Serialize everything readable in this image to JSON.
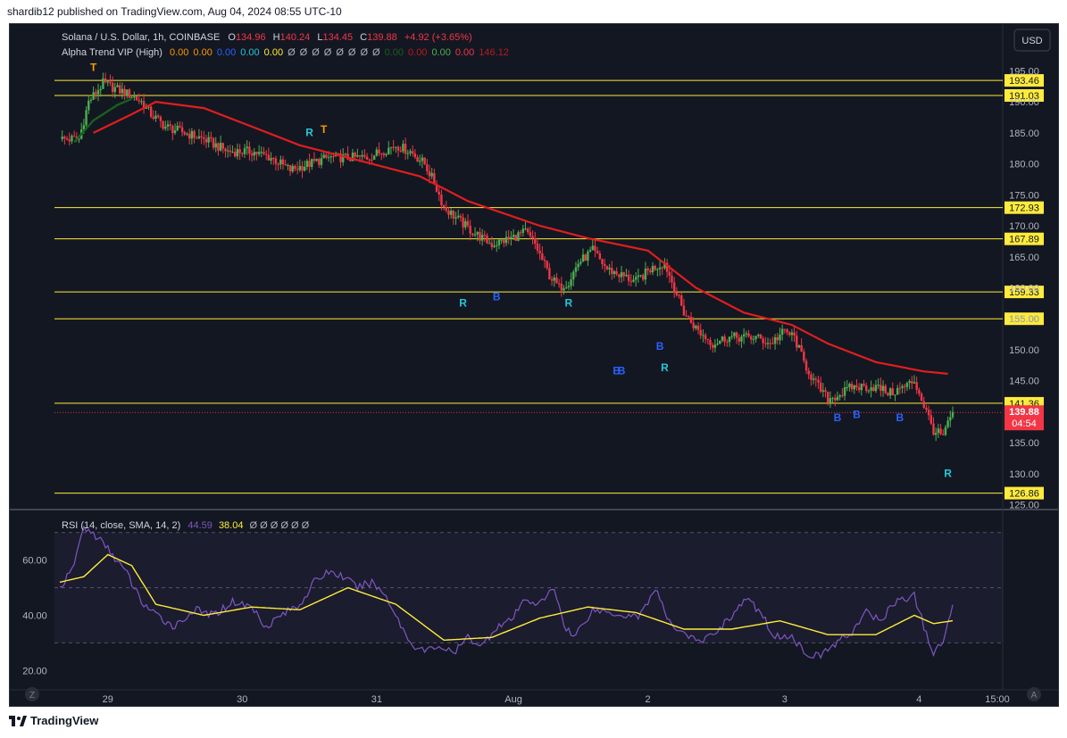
{
  "header": {
    "published": "shardib12 published on TradingView.com, Aug 04, 2024 08:55 UTC-10"
  },
  "footer": {
    "brand": "TradingView"
  },
  "legend": {
    "symbol": "Solana / U.S. Dollar, 1h, COINBASE",
    "o_label": "O",
    "o_val": "134.96",
    "h_label": "H",
    "h_val": "140.24",
    "l_label": "L",
    "l_val": "134.45",
    "c_label": "C",
    "c_val": "139.88",
    "change": "+4.92 (+3.65%)",
    "indicator": "Alpha Trend VIP (High)",
    "ind_values": [
      {
        "v": "0.00",
        "c": "#ff9800"
      },
      {
        "v": "0.00",
        "c": "#ff9800"
      },
      {
        "v": "0.00",
        "c": "#2962ff"
      },
      {
        "v": "0.00",
        "c": "#26c6da"
      },
      {
        "v": "0.00",
        "c": "#ffeb3b"
      },
      {
        "v": "Ø",
        "c": "#b2b5be"
      },
      {
        "v": "Ø",
        "c": "#b2b5be"
      },
      {
        "v": "Ø",
        "c": "#b2b5be"
      },
      {
        "v": "Ø",
        "c": "#b2b5be"
      },
      {
        "v": "Ø",
        "c": "#b2b5be"
      },
      {
        "v": "Ø",
        "c": "#b2b5be"
      },
      {
        "v": "Ø",
        "c": "#b2b5be"
      },
      {
        "v": "Ø",
        "c": "#b2b5be"
      },
      {
        "v": "0.00",
        "c": "#1b5e20"
      },
      {
        "v": "0.00",
        "c": "#b71c1c"
      },
      {
        "v": "0.00",
        "c": "#4caf50"
      },
      {
        "v": "0.00",
        "c": "#f23645"
      },
      {
        "v": "146.12",
        "c": "#b71c1c"
      }
    ]
  },
  "rsi_legend": {
    "label": "RSI (14, close, SMA, 14, 2)",
    "rsi": "44.59",
    "sma": "38.04",
    "nulls": "Ø Ø Ø Ø Ø Ø"
  },
  "currency_button": "USD",
  "last_price": {
    "value": "139.88",
    "countdown": "04:54"
  },
  "colors": {
    "bg": "#131722",
    "up": "#4caf50",
    "down": "#f23645",
    "level": "#ffeb3b",
    "trend": "#e01e1e",
    "rsi": "#7e57c2",
    "rsi_ma": "#ffeb3b"
  },
  "chart_data": [
    {
      "type": "candlestick",
      "title": "Solana / U.S. Dollar, 1h, COINBASE",
      "x_ticks": [
        "29",
        "30",
        "31",
        "Aug",
        "2",
        "3",
        "4",
        "15:00"
      ],
      "y_ticks": [
        "195.00",
        "190.00",
        "185.00",
        "180.00",
        "175.00",
        "170.00",
        "165.00",
        "160.00",
        "155.00",
        "150.00",
        "145.00",
        "140.00",
        "135.00",
        "130.00",
        "125.00"
      ],
      "ylim": [
        124.5,
        196.5
      ],
      "horizontal_levels": [
        193.46,
        191.03,
        172.93,
        167.89,
        159.33,
        155.0,
        141.36,
        126.86
      ],
      "level_labels": [
        "193.46",
        "191.03",
        "172.93",
        "167.89",
        "159.33",
        "155.00",
        "141.36",
        "126.86"
      ],
      "close_path_knots": [
        [
          0,
          184
        ],
        [
          8,
          184
        ],
        [
          12,
          190
        ],
        [
          18,
          193
        ],
        [
          24,
          192
        ],
        [
          30,
          191
        ],
        [
          34,
          190
        ],
        [
          38,
          188
        ],
        [
          44,
          186
        ],
        [
          52,
          185
        ],
        [
          60,
          184
        ],
        [
          70,
          182
        ],
        [
          80,
          182
        ],
        [
          88,
          181
        ],
        [
          96,
          179
        ],
        [
          104,
          180
        ],
        [
          112,
          181
        ],
        [
          120,
          181
        ],
        [
          128,
          181
        ],
        [
          134,
          182
        ],
        [
          140,
          183
        ],
        [
          146,
          182
        ],
        [
          152,
          180
        ],
        [
          156,
          177
        ],
        [
          160,
          173
        ],
        [
          166,
          171
        ],
        [
          172,
          169
        ],
        [
          180,
          167
        ],
        [
          188,
          168
        ],
        [
          194,
          169
        ],
        [
          198,
          167
        ],
        [
          204,
          162
        ],
        [
          208,
          160
        ],
        [
          212,
          161
        ],
        [
          216,
          164
        ],
        [
          222,
          166
        ],
        [
          228,
          163
        ],
        [
          234,
          162
        ],
        [
          240,
          161
        ],
        [
          246,
          163
        ],
        [
          252,
          164
        ],
        [
          256,
          160
        ],
        [
          260,
          156
        ],
        [
          266,
          153
        ],
        [
          272,
          151
        ],
        [
          278,
          152
        ],
        [
          284,
          152
        ],
        [
          290,
          152
        ],
        [
          296,
          151
        ],
        [
          302,
          153
        ],
        [
          306,
          152
        ],
        [
          310,
          148
        ],
        [
          314,
          145
        ],
        [
          320,
          142
        ],
        [
          326,
          143
        ],
        [
          330,
          144
        ],
        [
          336,
          144
        ],
        [
          340,
          144
        ],
        [
          346,
          143
        ],
        [
          352,
          144
        ],
        [
          356,
          145
        ],
        [
          360,
          141
        ],
        [
          364,
          137
        ],
        [
          368,
          136
        ],
        [
          372,
          139.88
        ]
      ],
      "trend_line": [
        [
          14,
          185
        ],
        [
          30,
          188
        ],
        [
          40,
          190
        ],
        [
          60,
          189
        ],
        [
          80,
          186
        ],
        [
          100,
          183
        ],
        [
          120,
          181
        ],
        [
          150,
          178
        ],
        [
          170,
          174
        ],
        [
          200,
          170
        ],
        [
          220,
          168
        ],
        [
          245,
          166
        ],
        [
          265,
          160
        ],
        [
          285,
          156
        ],
        [
          305,
          154
        ],
        [
          320,
          151
        ],
        [
          340,
          148
        ],
        [
          360,
          146.5
        ],
        [
          370,
          146.12
        ]
      ],
      "signal_labels": [
        "T",
        "R",
        "T",
        "R",
        "B",
        "R",
        "B",
        "B",
        "B",
        "R",
        "B",
        "B",
        "B",
        "R"
      ],
      "price_labels": {
        "last": "139.88",
        "countdown": "04:54"
      }
    },
    {
      "type": "line",
      "title": "RSI (14, close, SMA, 14, 2)",
      "y_ticks": [
        "60.00",
        "40.00",
        "20.00"
      ],
      "ylim": [
        13,
        78
      ],
      "band": [
        30,
        70
      ],
      "midline": 50,
      "series": [
        {
          "name": "RSI",
          "knots": [
            [
              0,
              50
            ],
            [
              5,
              56
            ],
            [
              10,
              72
            ],
            [
              16,
              68
            ],
            [
              22,
              62
            ],
            [
              28,
              55
            ],
            [
              34,
              45
            ],
            [
              40,
              40
            ],
            [
              48,
              36
            ],
            [
              56,
              42
            ],
            [
              64,
              40
            ],
            [
              72,
              45
            ],
            [
              80,
              43
            ],
            [
              86,
              36
            ],
            [
              92,
              40
            ],
            [
              100,
              44
            ],
            [
              106,
              52
            ],
            [
              112,
              56
            ],
            [
              118,
              54
            ],
            [
              124,
              50
            ],
            [
              130,
              52
            ],
            [
              136,
              47
            ],
            [
              140,
              40
            ],
            [
              146,
              30
            ],
            [
              152,
              27
            ],
            [
              158,
              29
            ],
            [
              164,
              26
            ],
            [
              170,
              32
            ],
            [
              176,
              29
            ],
            [
              182,
              36
            ],
            [
              188,
              38
            ],
            [
              194,
              46
            ],
            [
              200,
              44
            ],
            [
              206,
              50
            ],
            [
              210,
              37
            ],
            [
              214,
              32
            ],
            [
              222,
              42
            ],
            [
              230,
              41
            ],
            [
              236,
              40
            ],
            [
              242,
              40
            ],
            [
              248,
              50
            ],
            [
              254,
              37
            ],
            [
              260,
              34
            ],
            [
              266,
              30
            ],
            [
              272,
              33
            ],
            [
              280,
              40
            ],
            [
              286,
              46
            ],
            [
              292,
              41
            ],
            [
              298,
              32
            ],
            [
              304,
              33
            ],
            [
              310,
              27
            ],
            [
              316,
              25
            ],
            [
              322,
              29
            ],
            [
              330,
              34
            ],
            [
              336,
              41
            ],
            [
              342,
              38
            ],
            [
              348,
              45
            ],
            [
              356,
              47
            ],
            [
              360,
              36
            ],
            [
              364,
              26
            ],
            [
              368,
              30
            ],
            [
              372,
              44.59
            ]
          ]
        },
        {
          "name": "SMA",
          "knots": [
            [
              0,
              52
            ],
            [
              10,
              54
            ],
            [
              20,
              62
            ],
            [
              30,
              58
            ],
            [
              40,
              44
            ],
            [
              60,
              40
            ],
            [
              80,
              43
            ],
            [
              100,
              42
            ],
            [
              120,
              50
            ],
            [
              140,
              44
            ],
            [
              160,
              31
            ],
            [
              180,
              32
            ],
            [
              200,
              39
            ],
            [
              220,
              43
            ],
            [
              240,
              41
            ],
            [
              260,
              35
            ],
            [
              280,
              35
            ],
            [
              300,
              38
            ],
            [
              320,
              33
            ],
            [
              340,
              33
            ],
            [
              356,
              40
            ],
            [
              364,
              37
            ],
            [
              372,
              38.04
            ]
          ]
        }
      ]
    }
  ]
}
